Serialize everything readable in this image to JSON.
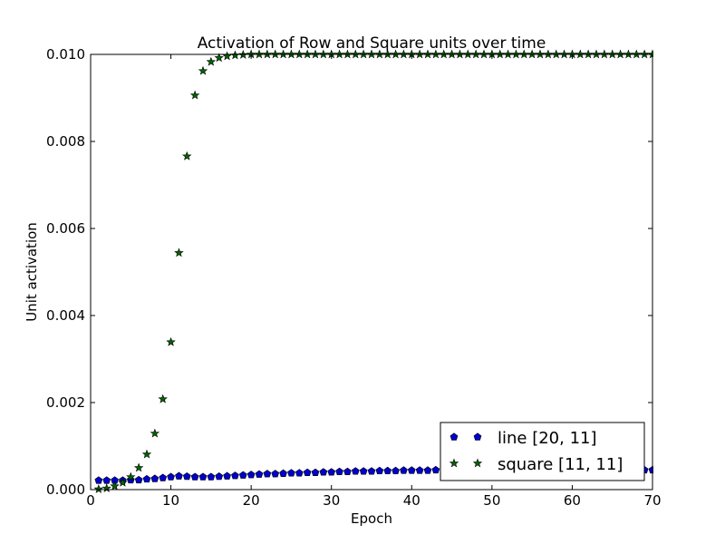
{
  "chart_data": {
    "type": "scatter",
    "title": "Activation of Row and Square units over time",
    "xlabel": "Epoch",
    "ylabel": "Unit activation",
    "xlim": [
      0,
      70
    ],
    "ylim": [
      0,
      0.01
    ],
    "xticks": [
      0,
      10,
      20,
      30,
      40,
      50,
      60,
      70
    ],
    "xtick_labels": [
      "0",
      "10",
      "20",
      "30",
      "40",
      "50",
      "60",
      "70"
    ],
    "yticks": [
      0,
      0.002,
      0.004,
      0.006,
      0.008,
      0.01
    ],
    "ytick_labels": [
      "0.000",
      "0.002",
      "0.004",
      "0.006",
      "0.008",
      "0.010"
    ],
    "grid": false,
    "legend_position": "lower-right",
    "series": [
      {
        "name": "line [20, 11]",
        "marker": "pentagon",
        "color": "#0000cc",
        "x": [
          1,
          2,
          3,
          4,
          5,
          6,
          7,
          8,
          9,
          10,
          11,
          12,
          13,
          14,
          15,
          16,
          17,
          18,
          19,
          20,
          21,
          22,
          23,
          24,
          25,
          26,
          27,
          28,
          29,
          30,
          31,
          32,
          33,
          34,
          35,
          36,
          37,
          38,
          39,
          40,
          41,
          42,
          43,
          44,
          45,
          46,
          47,
          48,
          49,
          50,
          51,
          52,
          53,
          54,
          55,
          56,
          57,
          58,
          59,
          60,
          61,
          62,
          63,
          64,
          65,
          66,
          67,
          68,
          69,
          70
        ],
        "y": [
          0.00021,
          0.00021,
          0.00021,
          0.00021,
          0.00022,
          0.00022,
          0.00024,
          0.00025,
          0.00027,
          0.00029,
          0.00031,
          0.0003,
          0.00029,
          0.00029,
          0.00029,
          0.0003,
          0.00031,
          0.00032,
          0.00033,
          0.00034,
          0.00035,
          0.00036,
          0.00036,
          0.00037,
          0.00038,
          0.00038,
          0.00039,
          0.00039,
          0.0004,
          0.0004,
          0.00041,
          0.00041,
          0.00042,
          0.00042,
          0.00042,
          0.00043,
          0.00043,
          0.00043,
          0.00044,
          0.00044,
          0.00044,
          0.00044,
          0.00045,
          0.00045,
          0.00045,
          0.00045,
          0.00045,
          0.00045,
          0.00045,
          0.00045,
          0.00045,
          0.00045,
          0.00045,
          0.00045,
          0.00045,
          0.00045,
          0.00045,
          0.00045,
          0.00045,
          0.00045,
          0.00045,
          0.00045,
          0.00045,
          0.00045,
          0.00045,
          0.00045,
          0.00045,
          0.00045,
          0.00045,
          0.00045
        ]
      },
      {
        "name": "square [11, 11]",
        "marker": "star",
        "color": "#006400",
        "x": [
          1,
          2,
          3,
          4,
          5,
          6,
          7,
          8,
          9,
          10,
          11,
          12,
          13,
          14,
          15,
          16,
          17,
          18,
          19,
          20,
          21,
          22,
          23,
          24,
          25,
          26,
          27,
          28,
          29,
          30,
          31,
          32,
          33,
          34,
          35,
          36,
          37,
          38,
          39,
          40,
          41,
          42,
          43,
          44,
          45,
          46,
          47,
          48,
          49,
          50,
          51,
          52,
          53,
          54,
          55,
          56,
          57,
          58,
          59,
          60,
          61,
          62,
          63,
          64,
          65,
          66,
          67,
          68,
          69,
          70
        ],
        "y": [
          1e-05,
          3e-05,
          8e-05,
          0.00016,
          0.00029,
          0.0005,
          0.00081,
          0.00129,
          0.00208,
          0.00339,
          0.00544,
          0.00766,
          0.00906,
          0.00962,
          0.00983,
          0.00992,
          0.00996,
          0.00998,
          0.00999,
          0.01,
          0.01,
          0.01,
          0.01,
          0.01,
          0.01,
          0.01,
          0.01,
          0.01,
          0.01,
          0.01,
          0.01,
          0.01,
          0.01,
          0.01,
          0.01,
          0.01,
          0.01,
          0.01,
          0.01,
          0.01,
          0.01,
          0.01,
          0.01,
          0.01,
          0.01,
          0.01,
          0.01,
          0.01,
          0.01,
          0.01,
          0.01,
          0.01,
          0.01,
          0.01,
          0.01,
          0.01,
          0.01,
          0.01,
          0.01,
          0.01,
          0.01,
          0.01,
          0.01,
          0.01,
          0.01,
          0.01,
          0.01,
          0.01,
          0.01,
          0.01
        ]
      }
    ]
  }
}
